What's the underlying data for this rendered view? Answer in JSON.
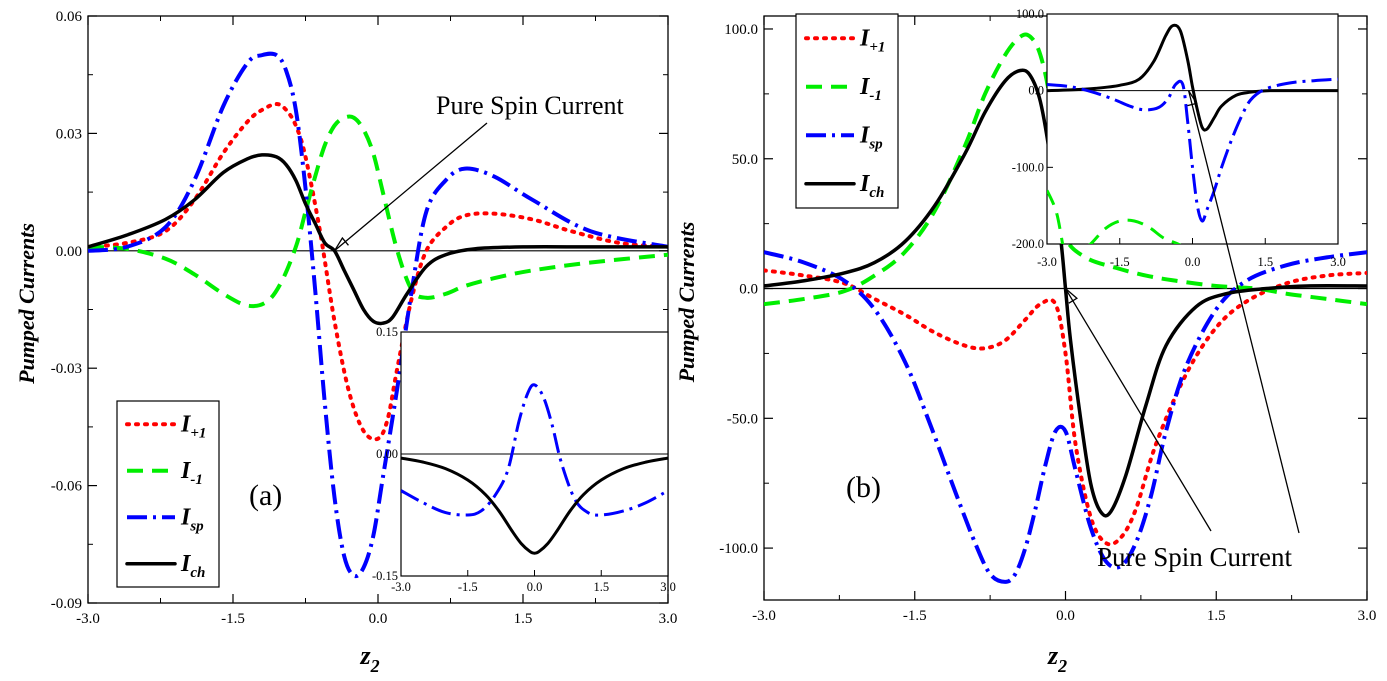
{
  "chart_data": [
    {
      "id": "a",
      "type": "line",
      "panel_label": "(a)",
      "xlabel": "z",
      "xlabel_sub": "2",
      "ylabel": "Pumped Currents",
      "xlim": [
        -3.0,
        3.0
      ],
      "ylim": [
        -0.09,
        0.06
      ],
      "xticks": [
        -3.0,
        -1.5,
        0.0,
        1.5,
        3.0
      ],
      "xtick_labels": [
        "-3.0",
        "-1.5",
        "0.0",
        "1.5",
        "3.0"
      ],
      "yticks": [
        -0.09,
        -0.06,
        -0.03,
        0.0,
        0.03,
        0.06
      ],
      "ytick_labels": [
        "-0.09",
        "-0.06",
        "-0.03",
        "0.00",
        "0.03",
        "0.06"
      ],
      "annotation": {
        "text": "Pure Spin  Current",
        "target": [
          -0.45,
          0.0
        ]
      },
      "legend": {
        "position": "bottom-left"
      },
      "series": [
        {
          "key": "Ip1",
          "name": "I",
          "sub": "+1",
          "color": "#ff0000",
          "dash": "2,7",
          "cap": "round",
          "width": 4,
          "x": [
            -3.0,
            -2.6,
            -2.2,
            -1.9,
            -1.6,
            -1.35,
            -1.2,
            -1.05,
            -0.95,
            -0.85,
            -0.75,
            -0.6,
            -0.45,
            -0.3,
            -0.15,
            0.0,
            0.1,
            0.2,
            0.35,
            0.5,
            0.7,
            0.9,
            1.2,
            1.6,
            2.0,
            2.5,
            3.0
          ],
          "y": [
            0.001,
            0.002,
            0.005,
            0.013,
            0.025,
            0.033,
            0.036,
            0.0375,
            0.036,
            0.032,
            0.024,
            0.005,
            -0.018,
            -0.036,
            -0.046,
            -0.048,
            -0.043,
            -0.03,
            -0.012,
            0.0,
            0.006,
            0.009,
            0.0095,
            0.008,
            0.005,
            0.002,
            0.001
          ]
        },
        {
          "key": "Im1",
          "name": "I",
          "sub": "-1",
          "color": "#00ee00",
          "dash": "16,9",
          "cap": "butt",
          "width": 4,
          "x": [
            -3.0,
            -2.6,
            -2.2,
            -1.9,
            -1.6,
            -1.35,
            -1.15,
            -1.0,
            -0.85,
            -0.75,
            -0.65,
            -0.55,
            -0.45,
            -0.35,
            -0.25,
            -0.15,
            -0.05,
            0.05,
            0.2,
            0.35,
            0.5,
            0.7,
            0.9,
            1.2,
            1.6,
            2.2,
            3.0
          ],
          "y": [
            0.001,
            0.0005,
            -0.002,
            -0.006,
            -0.011,
            -0.014,
            -0.013,
            -0.008,
            0.001,
            0.01,
            0.019,
            0.027,
            0.032,
            0.034,
            0.034,
            0.031,
            0.025,
            0.015,
            0.0,
            -0.01,
            -0.012,
            -0.011,
            -0.009,
            -0.007,
            -0.005,
            -0.003,
            -0.001
          ]
        },
        {
          "key": "Isp",
          "name": "I",
          "sub": "sp",
          "color": "#0000ff",
          "dash": "20,6,3,6",
          "cap": "butt",
          "width": 4,
          "x": [
            -3.0,
            -2.6,
            -2.2,
            -1.9,
            -1.6,
            -1.35,
            -1.2,
            -1.05,
            -0.95,
            -0.85,
            -0.75,
            -0.65,
            -0.55,
            -0.45,
            -0.35,
            -0.25,
            -0.15,
            -0.05,
            0.05,
            0.2,
            0.35,
            0.5,
            0.7,
            0.9,
            1.2,
            1.6,
            2.2,
            3.0
          ],
          "y": [
            0.0,
            0.001,
            0.006,
            0.018,
            0.037,
            0.048,
            0.05,
            0.05,
            0.046,
            0.036,
            0.016,
            -0.01,
            -0.039,
            -0.063,
            -0.078,
            -0.083,
            -0.081,
            -0.073,
            -0.058,
            -0.035,
            -0.01,
            0.01,
            0.018,
            0.021,
            0.019,
            0.013,
            0.005,
            0.001
          ]
        },
        {
          "key": "Ich",
          "name": "I",
          "sub": "ch",
          "color": "#000000",
          "dash": "",
          "cap": "round",
          "width": 3.5,
          "x": [
            -3.0,
            -2.6,
            -2.2,
            -1.9,
            -1.6,
            -1.35,
            -1.2,
            -1.05,
            -0.95,
            -0.85,
            -0.75,
            -0.65,
            -0.55,
            -0.45,
            -0.35,
            -0.25,
            -0.15,
            -0.05,
            0.05,
            0.15,
            0.3,
            0.5,
            0.7,
            1.0,
            1.5,
            2.2,
            3.0
          ],
          "y": [
            0.001,
            0.004,
            0.008,
            0.013,
            0.02,
            0.0235,
            0.0245,
            0.024,
            0.022,
            0.018,
            0.012,
            0.007,
            0.002,
            0.0,
            -0.005,
            -0.01,
            -0.015,
            -0.018,
            -0.0185,
            -0.017,
            -0.011,
            -0.004,
            -0.001,
            0.0005,
            0.001,
            0.001,
            0.001
          ]
        }
      ],
      "inset": {
        "xlim": [
          -3.0,
          3.0
        ],
        "ylim": [
          -0.15,
          0.15
        ],
        "xticks": [
          -3.0,
          -1.5,
          0.0,
          1.5,
          3.0
        ],
        "xtick_labels": [
          "-3.0",
          "-1.5",
          "0.0",
          "1.5",
          "3.0"
        ],
        "yticks": [
          -0.15,
          0.0,
          0.15
        ],
        "ytick_labels": [
          "-0.15",
          "0.00",
          "0.15"
        ],
        "series": [
          {
            "key": "Isp",
            "color": "#0000ff",
            "dash": "20,6,3,6",
            "width": 3,
            "x": [
              -3.0,
              -2.5,
              -2.0,
              -1.5,
              -1.2,
              -0.9,
              -0.6,
              -0.35,
              -0.15,
              0.0,
              0.2,
              0.4,
              0.6,
              0.9,
              1.2,
              1.5,
              2.0,
              2.5,
              3.0
            ],
            "y": [
              -0.045,
              -0.06,
              -0.072,
              -0.075,
              -0.07,
              -0.052,
              -0.02,
              0.04,
              0.075,
              0.085,
              0.07,
              0.035,
              -0.01,
              -0.055,
              -0.072,
              -0.075,
              -0.07,
              -0.06,
              -0.045
            ]
          },
          {
            "key": "Ich",
            "color": "#000000",
            "dash": "",
            "width": 3,
            "x": [
              -3.0,
              -2.5,
              -2.0,
              -1.5,
              -1.1,
              -0.8,
              -0.5,
              -0.3,
              -0.1,
              0.0,
              0.1,
              0.3,
              0.5,
              0.8,
              1.1,
              1.5,
              2.0,
              2.5,
              3.0
            ],
            "y": [
              -0.005,
              -0.01,
              -0.018,
              -0.032,
              -0.05,
              -0.07,
              -0.095,
              -0.11,
              -0.12,
              -0.122,
              -0.12,
              -0.11,
              -0.095,
              -0.07,
              -0.05,
              -0.032,
              -0.018,
              -0.01,
              -0.005
            ]
          }
        ]
      }
    },
    {
      "id": "b",
      "type": "line",
      "panel_label": "(b)",
      "xlabel": "z",
      "xlabel_sub": "2",
      "ylabel": "Pumped Currents",
      "xlim": [
        -3.0,
        3.0
      ],
      "ylim": [
        -120.0,
        105.0
      ],
      "xticks": [
        -3.0,
        -1.5,
        0.0,
        1.5,
        3.0
      ],
      "xtick_labels": [
        "-3.0",
        "-1.5",
        "0.0",
        "1.5",
        "3.0"
      ],
      "yticks": [
        -100.0,
        -50.0,
        0.0,
        50.0,
        100.0
      ],
      "ytick_labels": [
        "-100.0",
        "-50.0",
        "0.0",
        "50.0",
        "100.0"
      ],
      "annotation": {
        "text": "Pure Spin Current"
      },
      "legend": {
        "position": "top-left"
      },
      "series": [
        {
          "key": "Ip1",
          "name": "I",
          "sub": "+1",
          "color": "#ff0000",
          "dash": "2,7",
          "cap": "round",
          "width": 4,
          "x": [
            -3.0,
            -2.6,
            -2.2,
            -1.9,
            -1.6,
            -1.3,
            -1.0,
            -0.8,
            -0.6,
            -0.4,
            -0.25,
            -0.1,
            0.0,
            0.1,
            0.25,
            0.4,
            0.55,
            0.7,
            0.9,
            1.2,
            1.5,
            1.8,
            2.2,
            2.6,
            3.0
          ],
          "y": [
            7.0,
            5.0,
            2.0,
            -4.0,
            -10.0,
            -17.0,
            -22.0,
            -23.0,
            -20.0,
            -12.0,
            -6.0,
            -6.0,
            -25.0,
            -60.0,
            -88.0,
            -98.0,
            -96.0,
            -85.0,
            -60.0,
            -33.0,
            -15.0,
            -5.0,
            2.0,
            5.0,
            6.0
          ]
        },
        {
          "key": "Im1",
          "name": "I",
          "sub": "-1",
          "color": "#00ee00",
          "dash": "16,9",
          "cap": "butt",
          "width": 4,
          "x": [
            -3.0,
            -2.6,
            -2.2,
            -1.9,
            -1.6,
            -1.3,
            -1.0,
            -0.8,
            -0.6,
            -0.45,
            -0.35,
            -0.25,
            -0.15,
            -0.05,
            0.0,
            0.2,
            0.5,
            0.8,
            1.1,
            1.5,
            1.9,
            2.2,
            2.6,
            3.0
          ],
          "y": [
            -6.0,
            -4.0,
            -1.0,
            5.0,
            14.0,
            30.0,
            55.0,
            75.0,
            90.0,
            97.0,
            97.0,
            90.0,
            72.0,
            40.0,
            20.0,
            12.0,
            8.0,
            5.0,
            3.0,
            1.0,
            0.0,
            -2.0,
            -4.0,
            -6.0
          ]
        },
        {
          "key": "Isp",
          "name": "I",
          "sub": "sp",
          "color": "#0000ff",
          "dash": "20,6,3,6",
          "cap": "butt",
          "width": 4,
          "x": [
            -3.0,
            -2.6,
            -2.2,
            -1.9,
            -1.6,
            -1.35,
            -1.1,
            -0.9,
            -0.75,
            -0.6,
            -0.5,
            -0.4,
            -0.3,
            -0.2,
            -0.1,
            0.0,
            0.1,
            0.25,
            0.4,
            0.55,
            0.7,
            0.85,
            1.0,
            1.2,
            1.5,
            1.8,
            2.2,
            2.6,
            3.0
          ],
          "y": [
            14.0,
            10.0,
            3.0,
            -8.0,
            -28.0,
            -52.0,
            -78.0,
            -98.0,
            -110.0,
            -113.0,
            -110.0,
            -100.0,
            -85.0,
            -68.0,
            -55.0,
            -55.0,
            -70.0,
            -92.0,
            -105.0,
            -107.0,
            -98.0,
            -80.0,
            -55.0,
            -30.0,
            -8.0,
            3.0,
            9.0,
            12.0,
            14.0
          ]
        },
        {
          "key": "Ich",
          "name": "I",
          "sub": "ch",
          "color": "#000000",
          "dash": "",
          "cap": "round",
          "width": 3.5,
          "x": [
            -3.0,
            -2.6,
            -2.2,
            -1.9,
            -1.6,
            -1.3,
            -1.0,
            -0.8,
            -0.6,
            -0.45,
            -0.35,
            -0.25,
            -0.15,
            -0.05,
            0.0,
            0.05,
            0.15,
            0.25,
            0.35,
            0.45,
            0.6,
            0.8,
            1.0,
            1.3,
            1.6,
            2.0,
            2.4,
            3.0
          ],
          "y": [
            1.0,
            3.0,
            6.0,
            10.0,
            18.0,
            32.0,
            52.0,
            68.0,
            80.0,
            84.0,
            82.0,
            72.0,
            50.0,
            20.0,
            0.0,
            -20.0,
            -50.0,
            -75.0,
            -86.0,
            -86.0,
            -72.0,
            -45.0,
            -22.0,
            -7.0,
            -2.0,
            0.0,
            1.0,
            1.0
          ]
        }
      ],
      "inset": {
        "xlim": [
          -3.0,
          3.0
        ],
        "ylim": [
          -200.0,
          100.0
        ],
        "xticks": [
          -3.0,
          -1.5,
          0.0,
          1.5,
          3.0
        ],
        "xtick_labels": [
          "-3.0",
          "-1.5",
          "0.0",
          "1.5",
          "3.0"
        ],
        "yticks": [
          -200.0,
          -100.0,
          0.0,
          100.0
        ],
        "ytick_labels": [
          "-200.0",
          "-100.0",
          "0.0",
          "100.0"
        ],
        "series": [
          {
            "key": "Ich",
            "color": "#000000",
            "dash": "",
            "width": 3,
            "x": [
              -3.0,
              -2.5,
              -2.0,
              -1.5,
              -1.1,
              -0.8,
              -0.55,
              -0.4,
              -0.25,
              -0.1,
              0.0,
              0.1,
              0.2,
              0.3,
              0.45,
              0.6,
              0.9,
              1.2,
              1.6,
              2.0,
              3.0
            ],
            "y": [
              0.0,
              1.0,
              3.0,
              7.0,
              15.0,
              38.0,
              72.0,
              85.0,
              78.0,
              40.0,
              5.0,
              -25.0,
              -48.0,
              -50.0,
              -35.0,
              -20.0,
              -6.0,
              -2.0,
              0.0,
              0.0,
              0.0
            ]
          },
          {
            "key": "Isp",
            "color": "#0000ff",
            "dash": "20,6,3,6",
            "width": 3,
            "x": [
              -3.0,
              -2.5,
              -2.0,
              -1.6,
              -1.3,
              -1.0,
              -0.7,
              -0.5,
              -0.35,
              -0.2,
              -0.1,
              0.0,
              0.1,
              0.2,
              0.3,
              0.45,
              0.6,
              0.8,
              1.0,
              1.2,
              1.5,
              2.0,
              2.5,
              3.0
            ],
            "y": [
              8.0,
              5.0,
              -3.0,
              -12.0,
              -20.0,
              -25.0,
              -22.0,
              -10.0,
              8.0,
              8.0,
              -40.0,
              -100.0,
              -150.0,
              -170.0,
              -155.0,
              -130.0,
              -100.0,
              -65.0,
              -35.0,
              -12.0,
              2.0,
              10.0,
              13.0,
              15.0
            ]
          },
          {
            "key": "Im1",
            "color": "#00ee00",
            "dash": "16,9",
            "width": 3,
            "x": [
              -3.0,
              -2.8,
              -2.6,
              -2.4,
              -2.1,
              -1.8,
              -1.5,
              -1.2,
              -0.9,
              -0.6,
              -0.3,
              0.0,
              0.2,
              0.4
            ],
            "y": [
              -130.0,
              -160.0,
              -220.0,
              -215.0,
              -200.0,
              -180.0,
              -170.0,
              -170.0,
              -178.0,
              -192.0,
              -200.0,
              -210.0,
              -215.0,
              -220.0
            ]
          }
        ]
      }
    }
  ]
}
